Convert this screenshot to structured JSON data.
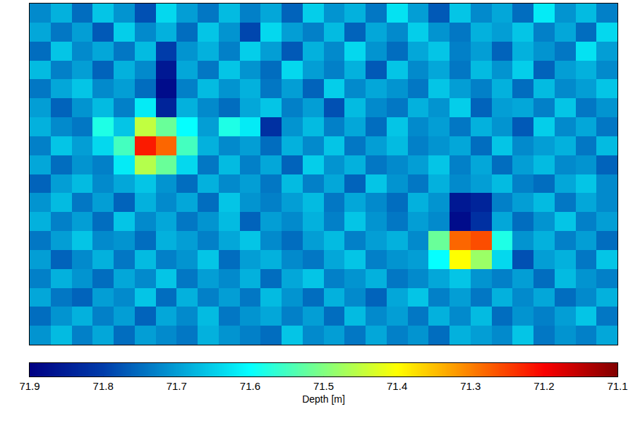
{
  "chart_data": {
    "type": "heatmap",
    "tick_labels": false,
    "color": "Jet",
    "cells": [
      [
        71.72,
        71.68,
        71.75,
        71.66,
        71.71,
        71.78,
        71.64,
        71.7,
        71.74,
        71.67,
        71.73,
        71.69,
        71.76,
        71.65,
        71.71,
        71.68,
        71.74,
        71.63,
        71.7,
        71.77,
        71.66,
        71.72,
        71.69,
        71.75,
        71.62,
        71.71,
        71.67,
        71.73
      ],
      [
        71.69,
        71.74,
        71.7,
        71.77,
        71.65,
        71.72,
        71.68,
        71.75,
        71.66,
        71.71,
        71.79,
        71.64,
        71.7,
        71.73,
        71.67,
        71.76,
        71.69,
        71.72,
        71.65,
        71.71,
        71.74,
        71.68,
        71.7,
        71.66,
        71.73,
        71.69,
        71.75,
        71.64
      ],
      [
        71.75,
        71.66,
        71.72,
        71.69,
        71.74,
        71.67,
        71.8,
        71.71,
        71.68,
        71.73,
        71.65,
        71.7,
        71.77,
        71.68,
        71.72,
        71.64,
        71.71,
        71.75,
        71.69,
        71.66,
        71.73,
        71.7,
        71.76,
        71.68,
        71.71,
        71.74,
        71.63,
        71.7
      ],
      [
        71.67,
        71.73,
        71.7,
        71.76,
        71.68,
        71.72,
        71.86,
        71.69,
        71.74,
        71.66,
        71.71,
        71.75,
        71.64,
        71.7,
        71.73,
        71.68,
        71.77,
        71.66,
        71.72,
        71.69,
        71.74,
        71.67,
        71.71,
        71.65,
        71.76,
        71.7,
        71.68,
        71.72
      ],
      [
        71.74,
        71.69,
        71.66,
        71.72,
        71.7,
        71.75,
        71.88,
        71.73,
        71.67,
        71.71,
        71.68,
        71.74,
        71.7,
        71.76,
        71.65,
        71.72,
        71.69,
        71.71,
        71.74,
        71.66,
        71.7,
        71.73,
        71.68,
        71.75,
        71.67,
        71.72,
        71.7,
        71.66
      ],
      [
        71.7,
        71.76,
        71.71,
        71.67,
        71.73,
        71.62,
        71.84,
        71.68,
        71.72,
        71.75,
        71.69,
        71.66,
        71.73,
        71.7,
        71.78,
        71.67,
        71.72,
        71.74,
        71.68,
        71.71,
        71.65,
        71.76,
        71.7,
        71.69,
        71.73,
        71.66,
        71.74,
        71.71
      ],
      [
        71.68,
        71.72,
        71.74,
        71.58,
        71.66,
        71.45,
        71.52,
        71.6,
        71.7,
        71.58,
        71.62,
        71.82,
        71.71,
        71.67,
        71.73,
        71.69,
        71.75,
        71.66,
        71.72,
        71.7,
        71.74,
        71.68,
        71.71,
        71.77,
        71.65,
        71.72,
        71.69,
        71.74
      ],
      [
        71.73,
        71.66,
        71.7,
        71.64,
        71.55,
        71.22,
        71.28,
        71.55,
        71.68,
        71.72,
        71.7,
        71.75,
        71.68,
        71.72,
        71.66,
        71.74,
        71.7,
        71.67,
        71.73,
        71.71,
        71.69,
        71.75,
        71.66,
        71.72,
        71.7,
        71.68,
        71.74,
        71.67
      ],
      [
        71.69,
        71.75,
        71.71,
        71.73,
        71.62,
        71.46,
        71.52,
        71.64,
        71.74,
        71.67,
        71.73,
        71.69,
        71.76,
        71.65,
        71.71,
        71.68,
        71.74,
        71.72,
        71.7,
        71.66,
        71.73,
        71.69,
        71.75,
        71.7,
        71.67,
        71.72,
        71.71,
        71.76
      ],
      [
        71.76,
        71.7,
        71.67,
        71.72,
        71.69,
        71.66,
        71.71,
        71.75,
        71.68,
        71.72,
        71.7,
        71.74,
        71.67,
        71.73,
        71.69,
        71.76,
        71.66,
        71.71,
        71.74,
        71.68,
        71.72,
        71.7,
        71.67,
        71.73,
        71.75,
        71.69,
        71.66,
        71.72
      ],
      [
        71.71,
        71.67,
        71.74,
        71.7,
        71.76,
        71.68,
        71.72,
        71.69,
        71.75,
        71.66,
        71.71,
        71.73,
        71.7,
        71.67,
        71.74,
        71.69,
        71.72,
        71.75,
        71.68,
        71.71,
        71.86,
        71.84,
        71.73,
        71.7,
        71.67,
        71.74,
        71.69,
        71.72
      ],
      [
        71.68,
        71.73,
        71.7,
        71.75,
        71.66,
        71.72,
        71.69,
        71.74,
        71.71,
        71.67,
        71.76,
        71.7,
        71.72,
        71.68,
        71.73,
        71.66,
        71.71,
        71.74,
        71.7,
        71.72,
        71.88,
        71.82,
        71.69,
        71.75,
        71.71,
        71.66,
        71.73,
        71.7
      ],
      [
        71.74,
        71.7,
        71.66,
        71.72,
        71.71,
        71.75,
        71.68,
        71.7,
        71.73,
        71.69,
        71.66,
        71.72,
        71.75,
        71.7,
        71.67,
        71.73,
        71.7,
        71.68,
        71.72,
        71.52,
        71.28,
        71.26,
        71.58,
        71.71,
        71.68,
        71.73,
        71.7,
        71.75
      ],
      [
        71.7,
        71.76,
        71.72,
        71.68,
        71.74,
        71.67,
        71.73,
        71.71,
        71.66,
        71.75,
        71.7,
        71.68,
        71.72,
        71.74,
        71.69,
        71.66,
        71.73,
        71.71,
        71.7,
        71.6,
        71.4,
        71.48,
        71.64,
        71.78,
        71.7,
        71.68,
        71.74,
        71.66
      ],
      [
        71.73,
        71.68,
        71.71,
        71.75,
        71.69,
        71.72,
        71.66,
        71.74,
        71.7,
        71.72,
        71.68,
        71.75,
        71.69,
        71.66,
        71.73,
        71.71,
        71.68,
        71.74,
        71.72,
        71.69,
        71.66,
        71.71,
        71.73,
        71.7,
        71.75,
        71.67,
        71.71,
        71.73
      ],
      [
        71.69,
        71.74,
        71.76,
        71.7,
        71.72,
        71.66,
        71.75,
        71.68,
        71.73,
        71.7,
        71.74,
        71.67,
        71.71,
        71.75,
        71.68,
        71.72,
        71.76,
        71.69,
        71.66,
        71.73,
        71.7,
        71.74,
        71.68,
        71.72,
        71.69,
        71.75,
        71.72,
        71.68
      ],
      [
        71.75,
        71.71,
        71.68,
        71.73,
        71.7,
        71.76,
        71.69,
        71.72,
        71.67,
        71.74,
        71.71,
        71.69,
        71.73,
        71.7,
        71.75,
        71.67,
        71.72,
        71.7,
        71.74,
        71.68,
        71.72,
        71.67,
        71.75,
        71.71,
        71.73,
        71.7,
        71.66,
        71.74
      ],
      [
        71.71,
        71.67,
        71.73,
        71.69,
        71.75,
        71.7,
        71.72,
        71.74,
        71.68,
        71.71,
        71.73,
        71.75,
        71.66,
        71.72,
        71.7,
        71.74,
        71.69,
        71.73,
        71.71,
        71.75,
        71.68,
        71.7,
        71.72,
        71.66,
        71.74,
        71.71,
        71.73,
        71.69
      ]
    ],
    "colorbar": {
      "title": "Depth [m]",
      "range": [
        71.9,
        71.1
      ],
      "ticks": [
        71.9,
        71.8,
        71.7,
        71.6,
        71.5,
        71.4,
        71.3,
        71.2,
        71.1
      ]
    }
  }
}
